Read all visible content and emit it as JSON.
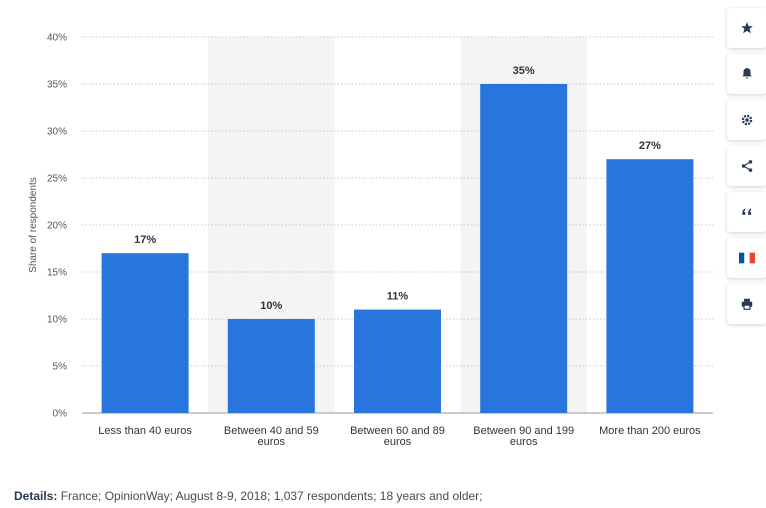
{
  "chart_data": {
    "type": "bar",
    "ylabel": "Share of respondents",
    "xlabel": "",
    "title": "",
    "ylim": [
      0,
      40
    ],
    "yticks": [
      "0%",
      "5%",
      "10%",
      "15%",
      "20%",
      "25%",
      "30%",
      "35%",
      "40%"
    ],
    "categories": [
      [
        "Less than 40 euros"
      ],
      [
        "Between 40 and 59",
        "euros"
      ],
      [
        "Between 60 and 89",
        "euros"
      ],
      [
        "Between 90 and 199",
        "euros"
      ],
      [
        "More than 200 euros"
      ]
    ],
    "values": [
      17,
      10,
      11,
      35,
      27
    ],
    "data_labels": [
      "17%",
      "10%",
      "11%",
      "35%",
      "27%"
    ],
    "grid": true,
    "bar_color": "#2876dd",
    "shaded_band_color": "#f4f4f4"
  },
  "toolbar": {
    "icons": [
      "star-icon",
      "bell-icon",
      "gear-icon",
      "share-icon",
      "quote-icon",
      "france-flag-icon",
      "print-icon"
    ],
    "flag_colors": [
      "#0055a4",
      "#ffffff",
      "#ef4135"
    ]
  },
  "details": {
    "label": "Details:",
    "text": " France; OpinionWay; August 8-9, 2018; 1,037 respondents; 18 years and older;"
  }
}
